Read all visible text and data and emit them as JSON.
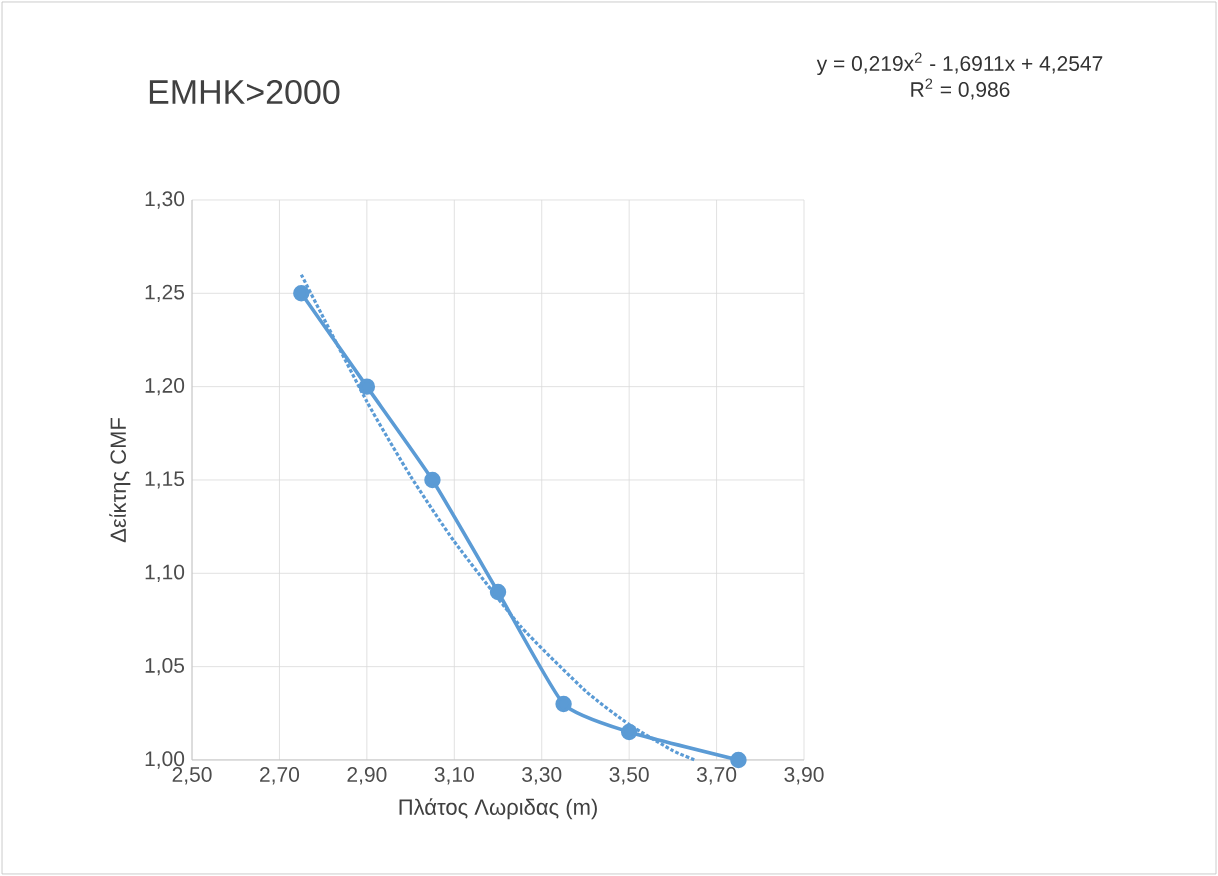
{
  "chart_data": {
    "type": "line",
    "title": "ΕΜΗΚ>2000",
    "xlabel": "Πλάτος Λωριδας (m)",
    "ylabel": "Δείκτης CMF",
    "annotations": [
      "y = 0,219x$^{2}$ - 1,6911x + 4,2547",
      "R$^{2}$ = 0,986"
    ],
    "series": [
      {
        "color": "#5b9bd5",
        "x": [
          2.75,
          2.9,
          3.05,
          3.2,
          3.35,
          3.5,
          3.75
        ],
        "values": [
          1.25,
          1.2,
          1.15,
          1.09,
          1.03,
          1.015,
          1.0
        ],
        "marker": "circle",
        "line_style": "solid"
      },
      {
        "color": "#5b9bd5",
        "x": [
          2.75,
          2.9,
          3.0,
          3.1,
          3.25,
          3.4,
          3.5,
          3.6,
          3.65
        ],
        "values": [
          1.26,
          1.192,
          1.152,
          1.117,
          1.072,
          1.037,
          1.019,
          1.005,
          1.0
        ],
        "marker": "none",
        "line_style": "dotted"
      }
    ],
    "xlim": [
      2.5,
      3.9
    ],
    "ylim": [
      1.0,
      1.3
    ],
    "xticks": [
      {
        "value": 2.5,
        "label": "2,50"
      },
      {
        "value": 2.7,
        "label": "2,70"
      },
      {
        "value": 2.9,
        "label": "2,90"
      },
      {
        "value": 3.1,
        "label": "3,10"
      },
      {
        "value": 3.3,
        "label": "3,30"
      },
      {
        "value": 3.5,
        "label": "3,50"
      },
      {
        "value": 3.7,
        "label": "3,70"
      },
      {
        "value": 3.9,
        "label": "3,90"
      }
    ],
    "yticks": [
      {
        "value": 1.0,
        "label": "1,00"
      },
      {
        "value": 1.05,
        "label": "1,05"
      },
      {
        "value": 1.1,
        "label": "1,10"
      },
      {
        "value": 1.15,
        "label": "1,15"
      },
      {
        "value": 1.2,
        "label": "1,20"
      },
      {
        "value": 1.25,
        "label": "1,25"
      },
      {
        "value": 1.3,
        "label": "1,30"
      }
    ],
    "grid": true
  }
}
